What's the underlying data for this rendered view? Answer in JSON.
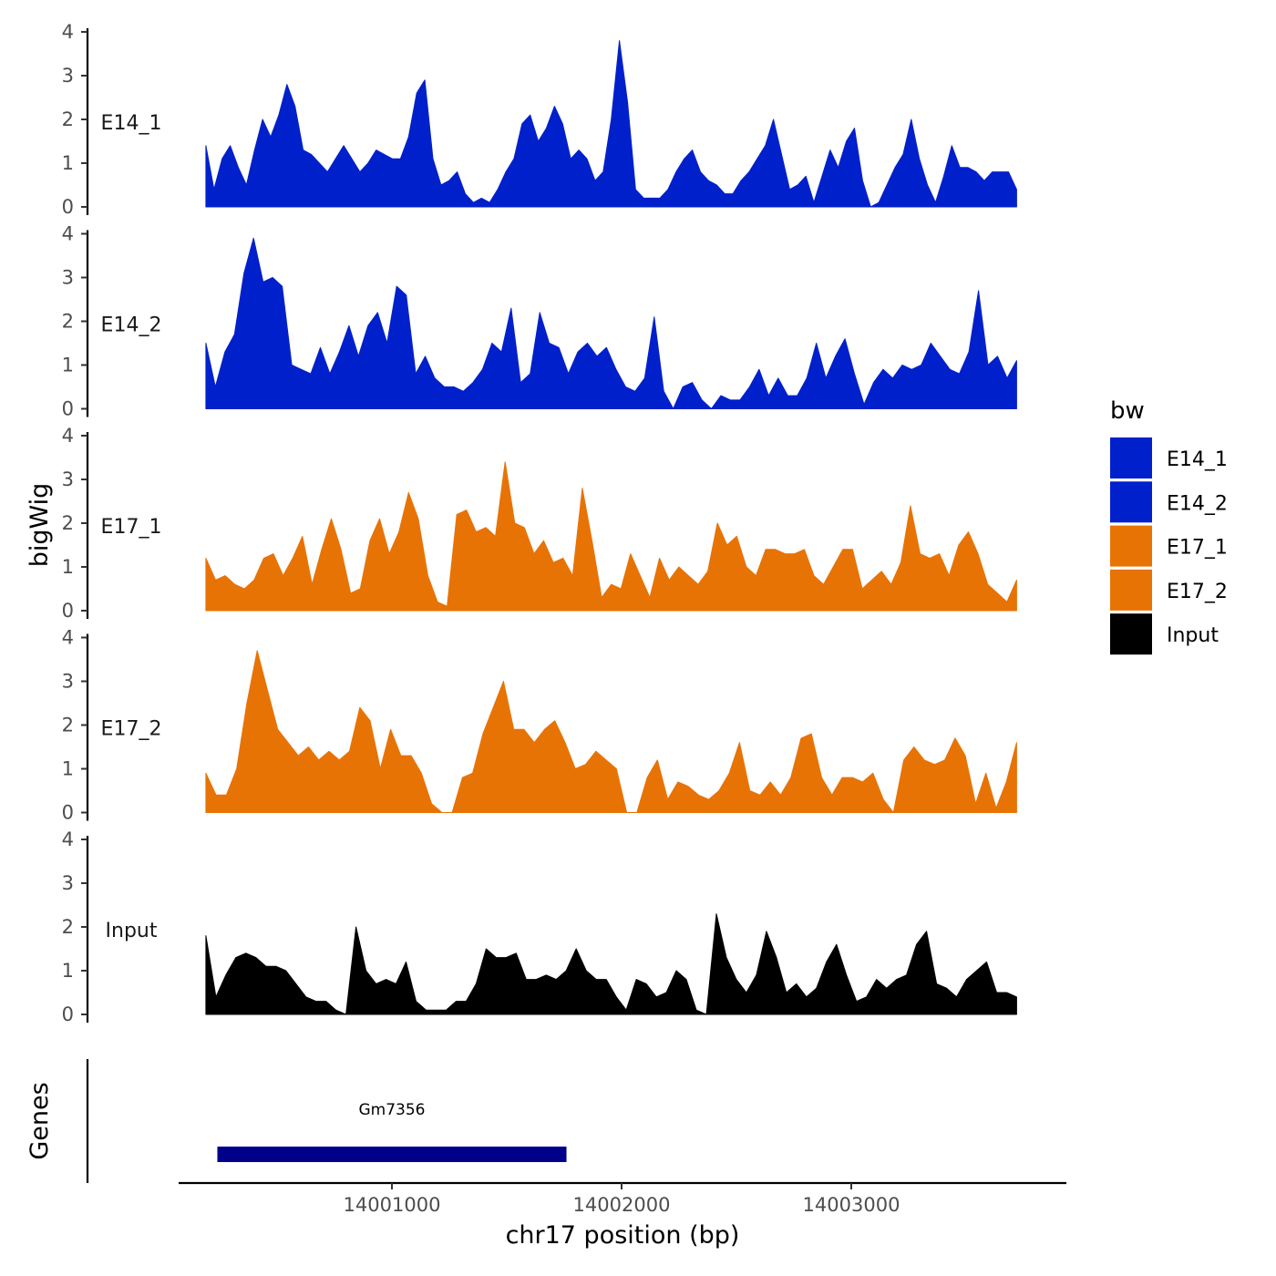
{
  "chart_data": {
    "type": "area",
    "title": "",
    "xlabel": "chr17 position (bp)",
    "ylabel": "bigWig",
    "genes_label": "Genes",
    "x_range": [
      14000190,
      14003720
    ],
    "xlim": [
      14000000,
      14004000
    ],
    "x_ticks": [
      {
        "value": 14001000,
        "label": "14001000"
      },
      {
        "value": 14002000,
        "label": "14002000"
      },
      {
        "value": 14003000,
        "label": "14003000"
      }
    ],
    "ylim": [
      0,
      4
    ],
    "y_ticks": [
      {
        "value": 0,
        "label": "0"
      },
      {
        "value": 1,
        "label": "1"
      },
      {
        "value": 2,
        "label": "2"
      },
      {
        "value": 3,
        "label": "3"
      },
      {
        "value": 4,
        "label": "4"
      }
    ],
    "legend": {
      "title": "bw",
      "position": "right",
      "entries": [
        {
          "name": "E14_1",
          "color": "#0020CC"
        },
        {
          "name": "E14_2",
          "color": "#0020CC"
        },
        {
          "name": "E17_1",
          "color": "#E87305"
        },
        {
          "name": "E17_2",
          "color": "#E87305"
        },
        {
          "name": "Input",
          "color": "#000000"
        }
      ]
    },
    "series": [
      {
        "name": "E14_1",
        "color": "#0020CC",
        "values": [
          1.4,
          0.4,
          1.1,
          1.4,
          0.9,
          0.5,
          1.3,
          2.0,
          1.6,
          2.1,
          2.8,
          2.3,
          1.3,
          1.2,
          1.0,
          0.8,
          1.1,
          1.4,
          1.1,
          0.8,
          1.0,
          1.3,
          1.2,
          1.1,
          1.1,
          1.6,
          2.6,
          2.9,
          1.1,
          0.5,
          0.6,
          0.8,
          0.3,
          0.1,
          0.2,
          0.1,
          0.4,
          0.8,
          1.1,
          1.9,
          2.1,
          1.5,
          1.8,
          2.3,
          1.9,
          1.1,
          1.3,
          1.1,
          0.6,
          0.8,
          2.0,
          3.8,
          2.4,
          0.4,
          0.2,
          0.2,
          0.2,
          0.4,
          0.8,
          1.1,
          1.3,
          0.8,
          0.6,
          0.5,
          0.3,
          0.3,
          0.6,
          0.8,
          1.1,
          1.4,
          2.0,
          1.2,
          0.4,
          0.5,
          0.7,
          0.1,
          0.7,
          1.3,
          0.9,
          1.5,
          1.8,
          0.6,
          0,
          0.1,
          0.5,
          0.9,
          1.2,
          2.0,
          1.1,
          0.5,
          0.1,
          0.7,
          1.4,
          0.9,
          0.9,
          0.8,
          0.6,
          0.8,
          0.8,
          0.8,
          0.4
        ]
      },
      {
        "name": "E14_2",
        "color": "#0020CC",
        "values": [
          1.5,
          0.5,
          1.3,
          1.7,
          3.1,
          3.9,
          2.9,
          3.0,
          2.8,
          1.0,
          0.9,
          0.8,
          1.4,
          0.8,
          1.3,
          1.9,
          1.2,
          1.9,
          2.2,
          1.5,
          2.8,
          2.6,
          0.8,
          1.2,
          0.7,
          0.5,
          0.5,
          0.4,
          0.6,
          0.9,
          1.5,
          1.3,
          2.3,
          0.6,
          0.8,
          2.2,
          1.5,
          1.4,
          0.8,
          1.3,
          1.5,
          1.2,
          1.4,
          0.9,
          0.5,
          0.4,
          0.7,
          2.1,
          0.4,
          0,
          0.5,
          0.6,
          0.2,
          0,
          0.3,
          0.2,
          0.2,
          0.5,
          0.9,
          0.3,
          0.7,
          0.3,
          0.3,
          0.7,
          1.5,
          0.7,
          1.2,
          1.6,
          0.8,
          0.1,
          0.6,
          0.9,
          0.7,
          1.0,
          0.9,
          1.0,
          1.5,
          1.2,
          0.9,
          0.8,
          1.3,
          2.7,
          1.0,
          1.2,
          0.7,
          1.1
        ]
      },
      {
        "name": "E17_1",
        "color": "#E87305",
        "values": [
          1.2,
          0.7,
          0.8,
          0.6,
          0.5,
          0.7,
          1.2,
          1.3,
          0.8,
          1.2,
          1.7,
          0.6,
          1.4,
          2.1,
          1.4,
          0.4,
          0.5,
          1.6,
          2.1,
          1.3,
          1.8,
          2.7,
          2.1,
          0.8,
          0.2,
          0.1,
          2.2,
          2.3,
          1.8,
          1.9,
          1.7,
          3.4,
          2.0,
          1.9,
          1.3,
          1.6,
          1.1,
          1.2,
          0.8,
          2.8,
          1.6,
          0.3,
          0.6,
          0.5,
          1.3,
          0.8,
          0.3,
          1.2,
          0.7,
          1.0,
          0.8,
          0.6,
          0.9,
          2.0,
          1.5,
          1.7,
          1.0,
          0.8,
          1.4,
          1.4,
          1.3,
          1.3,
          1.4,
          0.8,
          0.6,
          1.0,
          1.4,
          1.4,
          0.5,
          0.7,
          0.9,
          0.6,
          1.1,
          2.4,
          1.3,
          1.2,
          1.3,
          0.8,
          1.5,
          1.8,
          1.3,
          0.6,
          0.4,
          0.2,
          0.7
        ]
      },
      {
        "name": "E17_2",
        "color": "#E87305",
        "values": [
          0.9,
          0.4,
          0.4,
          1.0,
          2.5,
          3.7,
          2.8,
          1.9,
          1.6,
          1.3,
          1.5,
          1.2,
          1.4,
          1.2,
          1.4,
          2.4,
          2.1,
          1.0,
          1.9,
          1.3,
          1.3,
          0.9,
          0.2,
          0,
          0,
          0.8,
          0.9,
          1.8,
          2.4,
          3.0,
          1.9,
          1.9,
          1.6,
          1.9,
          2.1,
          1.6,
          1.0,
          1.1,
          1.4,
          1.2,
          1.0,
          0,
          0,
          0.8,
          1.2,
          0.3,
          0.7,
          0.6,
          0.4,
          0.3,
          0.5,
          0.9,
          1.6,
          0.5,
          0.4,
          0.7,
          0.4,
          0.8,
          1.7,
          1.8,
          0.8,
          0.4,
          0.8,
          0.8,
          0.7,
          0.9,
          0.3,
          0,
          1.2,
          1.5,
          1.2,
          1.1,
          1.2,
          1.7,
          1.3,
          0.2,
          0.9,
          0.1,
          0.7,
          1.6
        ]
      },
      {
        "name": "Input",
        "color": "#000000",
        "values": [
          1.8,
          0.4,
          0.9,
          1.3,
          1.4,
          1.3,
          1.1,
          1.1,
          1.0,
          0.7,
          0.4,
          0.3,
          0.3,
          0.1,
          0,
          2.0,
          1.0,
          0.7,
          0.8,
          0.7,
          1.2,
          0.3,
          0.1,
          0.1,
          0.1,
          0.3,
          0.3,
          0.7,
          1.5,
          1.3,
          1.3,
          1.4,
          0.8,
          0.8,
          0.9,
          0.8,
          1.0,
          1.5,
          1.0,
          0.8,
          0.8,
          0.4,
          0.1,
          0.8,
          0.7,
          0.4,
          0.5,
          1.0,
          0.8,
          0.1,
          0,
          2.3,
          1.3,
          0.8,
          0.5,
          0.9,
          1.9,
          1.3,
          0.5,
          0.7,
          0.4,
          0.6,
          1.2,
          1.6,
          0.9,
          0.3,
          0.4,
          0.8,
          0.6,
          0.8,
          0.9,
          1.6,
          1.9,
          0.7,
          0.6,
          0.4,
          0.8,
          1.0,
          1.2,
          0.5,
          0.5,
          0.4
        ]
      }
    ],
    "genes": [
      {
        "name": "Gm7356",
        "start": 14000240,
        "end": 14001760,
        "color": "#00008B"
      }
    ]
  }
}
